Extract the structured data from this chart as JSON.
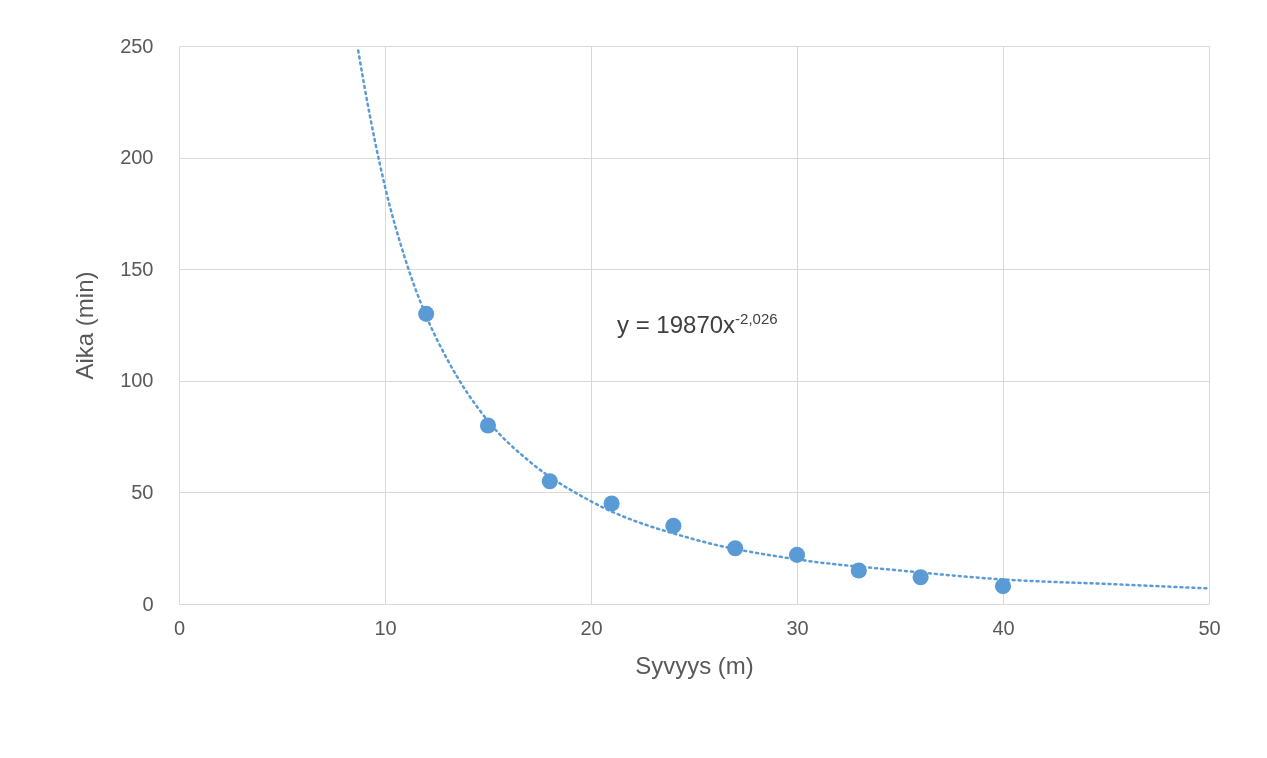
{
  "chart_data": {
    "type": "scatter",
    "xlabel": "Syvyys (m)",
    "ylabel": "Aika (min)",
    "xlim": [
      0,
      50
    ],
    "ylim": [
      0,
      250
    ],
    "xticks": [
      0,
      10,
      20,
      30,
      40,
      50
    ],
    "yticks": [
      0,
      50,
      100,
      150,
      200,
      250
    ],
    "grid": true,
    "marker": "circle",
    "annotations": [
      "y = 19870x$^{-2,026}$"
    ],
    "x": [
      12,
      15,
      18,
      21,
      24,
      27,
      30,
      33,
      36,
      40
    ],
    "series": [
      {
        "color": "#5b9bd5",
        "values": [
          130,
          80,
          55,
          45,
          35,
          25,
          22,
          15,
          12,
          8
        ]
      },
      {
        "type": "line",
        "color": "#5b9bd5",
        "line_style": "dotted",
        "marker": "none",
        "x": [
          8.7,
          9,
          10,
          11,
          12,
          13,
          15,
          17,
          20,
          25,
          30,
          35,
          40,
          45,
          50
        ],
        "values": [
          248,
          232,
          187,
          154,
          129,
          110,
          82,
          64,
          46,
          29,
          20,
          15,
          11,
          9,
          7
        ]
      }
    ]
  }
}
